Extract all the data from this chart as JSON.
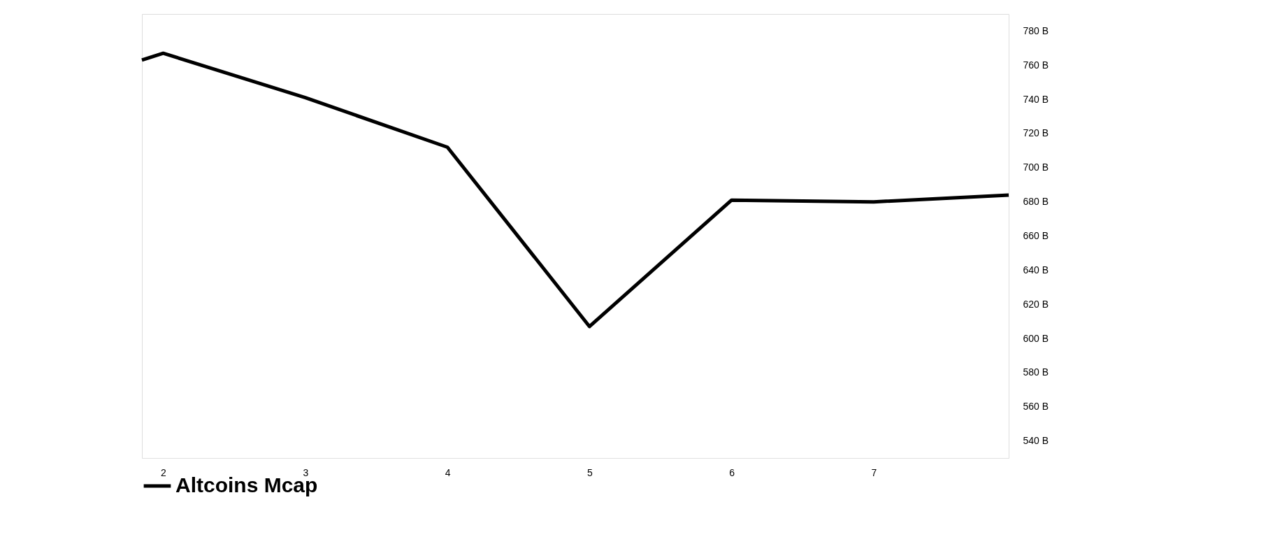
{
  "chart_data": {
    "type": "line",
    "x": [
      1.85,
      2,
      3,
      4,
      5,
      6,
      7,
      7.95
    ],
    "series": [
      {
        "name": "Altcoins Mcap",
        "color": "#000000",
        "values": [
          763,
          767,
          741,
          712,
          607,
          681,
          680,
          684
        ]
      }
    ],
    "xlim": [
      1.85,
      7.95
    ],
    "xticks": [
      2,
      3,
      4,
      5,
      6,
      7
    ],
    "ylim": [
      530,
      790
    ],
    "yticks": [
      {
        "value": 540,
        "label": "540 B"
      },
      {
        "value": 560,
        "label": "560 B"
      },
      {
        "value": 580,
        "label": "580 B"
      },
      {
        "value": 600,
        "label": "600 B"
      },
      {
        "value": 620,
        "label": "620 B"
      },
      {
        "value": 640,
        "label": "640 B"
      },
      {
        "value": 660,
        "label": "660 B"
      },
      {
        "value": 680,
        "label": "680 B"
      },
      {
        "value": 700,
        "label": "700 B"
      },
      {
        "value": 720,
        "label": "720 B"
      },
      {
        "value": 740,
        "label": "740 B"
      },
      {
        "value": 760,
        "label": "760 B"
      },
      {
        "value": 780,
        "label": "780 B"
      }
    ],
    "legend": "bottom",
    "grid": false,
    "marker": "none",
    "line_style": "solid"
  }
}
